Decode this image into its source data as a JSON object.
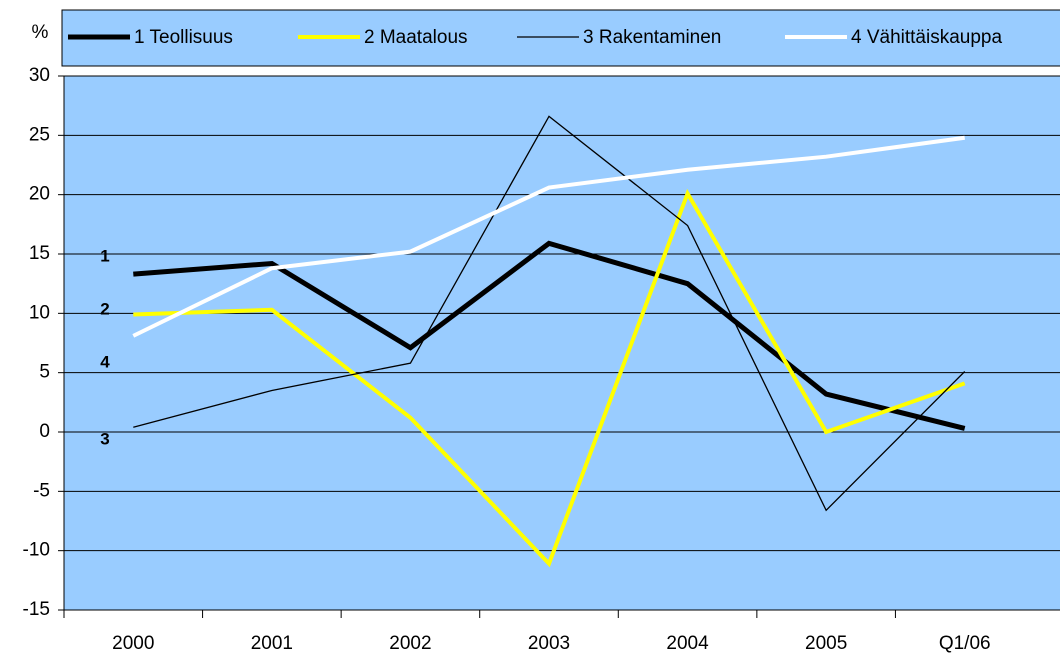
{
  "chart_data": {
    "type": "line",
    "y_label": "%",
    "categories": [
      "2000",
      "2001",
      "2002",
      "2003",
      "2004",
      "2005",
      "Q1/06"
    ],
    "series": [
      {
        "name": "1 Teollisuus",
        "color": "#000000",
        "width": 5,
        "values": [
          13.3,
          14.2,
          7.1,
          15.9,
          12.5,
          3.2,
          0.3
        ]
      },
      {
        "name": "2 Maatalous",
        "color": "#ffff00",
        "width": 4,
        "values": [
          9.9,
          10.3,
          1.2,
          -11.1,
          20.1,
          0,
          4.1
        ]
      },
      {
        "name": "3 Rakentaminen",
        "color": "#000000",
        "width": 1.3,
        "values": [
          0.4,
          3.5,
          5.8,
          26.6,
          17.4,
          -6.6,
          5.1
        ]
      },
      {
        "name": "4 Vähittäiskauppa",
        "color": "#ffffff",
        "width": 4,
        "values": [
          8.1,
          13.8,
          15.2,
          20.6,
          22.1,
          23.2,
          24.8
        ]
      }
    ],
    "annotations": [
      "1",
      "2",
      "4",
      "3"
    ],
    "ylim": [
      -15,
      30
    ],
    "yticks": [
      -15,
      -10,
      -5,
      0,
      5,
      10,
      15,
      20,
      25,
      30
    ],
    "grid": true,
    "legend": "top",
    "background": "#99ccff"
  }
}
